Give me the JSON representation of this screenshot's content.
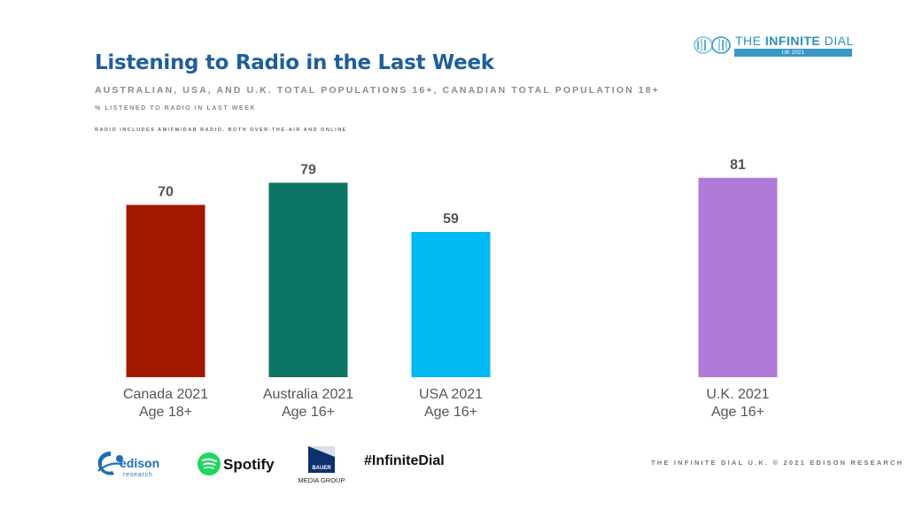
{
  "header": {
    "title": "Listening to Radio in the Last Week",
    "subtitle": "AUSTRALIAN, USA, AND U.K. TOTAL POPULATIONS 16+, CANADIAN TOTAL POPULATION 18+",
    "note1": "% LISTENED TO RADIO IN LAST WEEK",
    "note2": "RADIO INCLUDES AM/FM/DAB RADIO, BOTH OVER-THE-AIR AND ONLINE"
  },
  "brand": {
    "name_prefix": "THE ",
    "name_strong": "INFINITE",
    "name_suffix": " DIAL",
    "edition": "UK 2021",
    "icon": "infinity-icon"
  },
  "chart_data": {
    "type": "bar",
    "title": "Listening to Radio in the Last Week",
    "categories": [
      "Canada 2021\nAge 18+",
      "Australia 2021\nAge 16+",
      "USA 2021\nAge 16+",
      "U.K. 2021\nAge 16+"
    ],
    "category_lines": [
      [
        "Canada 2021",
        "Age 18+"
      ],
      [
        "Australia 2021",
        "Age 16+"
      ],
      [
        "USA 2021",
        "Age 16+"
      ],
      [
        "U.K. 2021",
        "Age 16+"
      ]
    ],
    "values": [
      70,
      79,
      59,
      81
    ],
    "colors": [
      "#a51800",
      "#0d7563",
      "#00b9f2",
      "#b07ad8"
    ],
    "ylim": [
      0,
      100
    ],
    "grid": false,
    "legend": "none"
  },
  "footer": {
    "hashtag": "#InfiniteDial",
    "copyright": "THE INFINITE DIAL U.K.  © 2021 EDISON RESEARCH",
    "logos": {
      "edison": {
        "name": "edison",
        "sub": "research",
        "icon": "edison-logo-icon"
      },
      "spotify": {
        "name": "Spotify",
        "icon": "spotify-logo-icon"
      },
      "bauer": {
        "name": "BAUER",
        "sub": "MEDIA GROUP",
        "icon": "bauer-logo-icon"
      }
    }
  }
}
